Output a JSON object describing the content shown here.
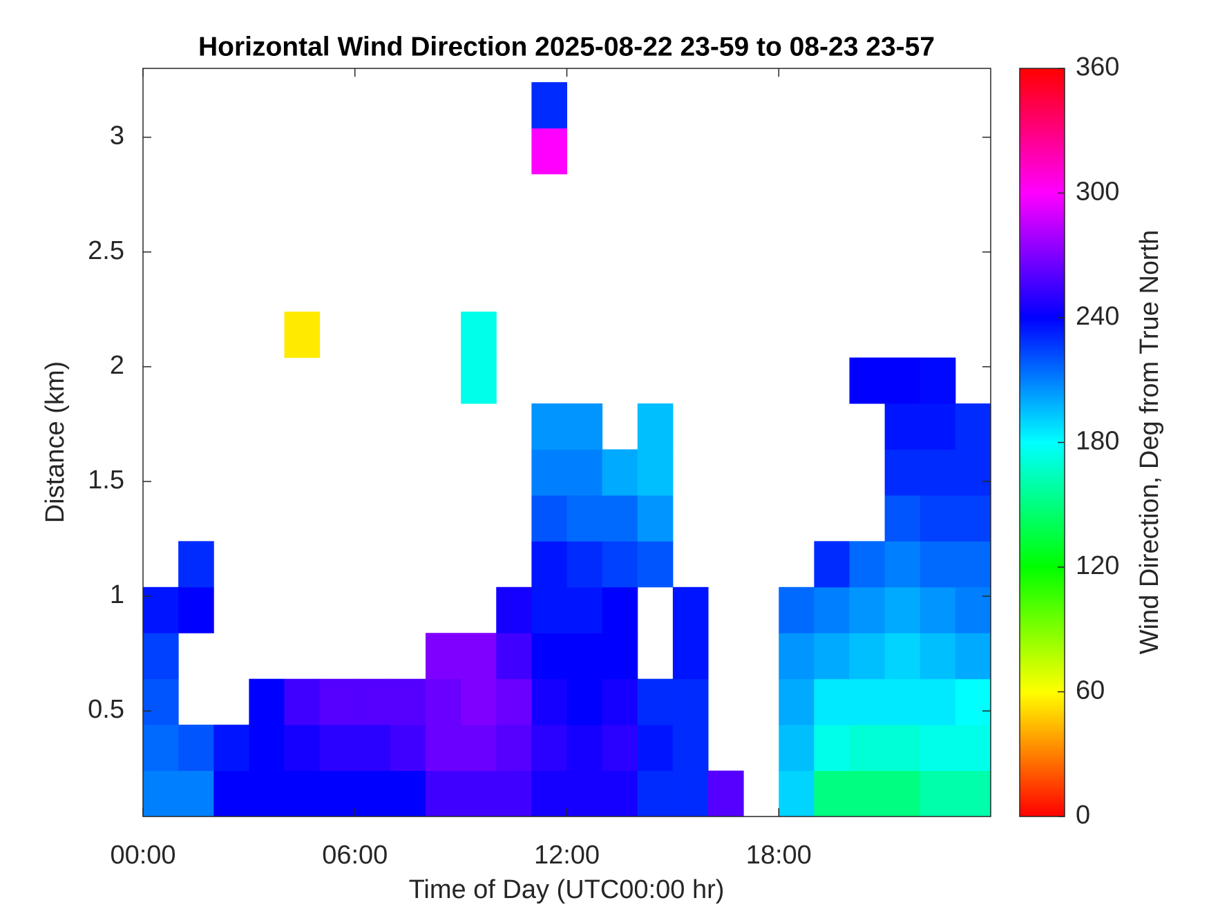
{
  "chart_data": {
    "type": "heatmap",
    "title": "Horizontal Wind Direction 2025-08-22 23-59 to 08-23 23-57",
    "xlabel": "Time of Day (UTC00:00 hr)",
    "ylabel": "Distance (km)",
    "xlim": [
      0,
      24
    ],
    "ylim": [
      0.04,
      3.3
    ],
    "xticks": [
      {
        "value": 0,
        "label": "00:00"
      },
      {
        "value": 6,
        "label": "06:00"
      },
      {
        "value": 12,
        "label": "12:00"
      },
      {
        "value": 18,
        "label": "18:00"
      }
    ],
    "yticks": [
      0.5,
      1,
      1.5,
      2,
      2.5,
      3
    ],
    "x_bins": [
      0,
      1,
      2,
      3,
      4,
      5,
      6,
      7,
      8,
      9,
      10,
      11,
      12,
      13,
      14,
      15,
      16,
      17,
      18,
      19,
      20,
      21,
      22,
      23,
      24
    ],
    "y_bins": [
      0.04,
      0.24,
      0.44,
      0.64,
      0.84,
      1.04,
      1.24,
      1.44,
      1.64,
      1.84,
      2.04,
      2.24,
      2.44,
      2.64,
      2.84,
      3.04,
      3.24
    ],
    "values": [
      [
        210,
        210,
        240,
        240,
        240,
        240,
        240,
        240,
        255,
        255,
        255,
        245,
        245,
        245,
        230,
        230,
        260,
        null,
        190,
        150,
        150,
        150,
        160,
        160
      ],
      [
        215,
        220,
        235,
        240,
        245,
        250,
        250,
        255,
        265,
        265,
        260,
        250,
        245,
        250,
        235,
        230,
        null,
        null,
        195,
        175,
        170,
        170,
        175,
        175
      ],
      [
        220,
        null,
        null,
        240,
        255,
        260,
        260,
        260,
        265,
        270,
        265,
        245,
        240,
        245,
        230,
        230,
        null,
        null,
        200,
        185,
        185,
        185,
        185,
        180
      ],
      [
        225,
        null,
        null,
        null,
        null,
        null,
        null,
        null,
        270,
        270,
        255,
        240,
        240,
        240,
        null,
        235,
        null,
        null,
        205,
        200,
        195,
        190,
        195,
        200
      ],
      [
        235,
        240,
        null,
        null,
        null,
        null,
        null,
        null,
        null,
        null,
        245,
        235,
        235,
        240,
        null,
        235,
        null,
        null,
        215,
        210,
        205,
        200,
        205,
        210
      ],
      [
        null,
        230,
        null,
        null,
        null,
        null,
        null,
        null,
        null,
        null,
        null,
        235,
        230,
        225,
        220,
        null,
        null,
        null,
        null,
        230,
        215,
        210,
        215,
        215
      ],
      [
        null,
        null,
        null,
        null,
        null,
        null,
        null,
        null,
        null,
        null,
        null,
        220,
        215,
        215,
        205,
        null,
        null,
        null,
        null,
        null,
        null,
        220,
        225,
        225
      ],
      [
        null,
        null,
        null,
        null,
        null,
        null,
        null,
        null,
        null,
        null,
        null,
        210,
        210,
        200,
        195,
        null,
        null,
        null,
        null,
        null,
        null,
        230,
        230,
        230
      ],
      [
        null,
        null,
        null,
        null,
        null,
        null,
        null,
        null,
        null,
        null,
        null,
        205,
        205,
        null,
        195,
        null,
        null,
        null,
        null,
        null,
        null,
        235,
        235,
        230
      ],
      [
        null,
        null,
        null,
        null,
        null,
        null,
        null,
        null,
        null,
        175,
        null,
        null,
        null,
        null,
        null,
        null,
        null,
        null,
        null,
        null,
        240,
        240,
        238,
        null
      ],
      [
        null,
        null,
        null,
        null,
        55,
        null,
        null,
        null,
        null,
        175,
        null,
        null,
        null,
        null,
        null,
        null,
        null,
        null,
        null,
        null,
        null,
        null,
        null,
        null
      ],
      [
        null,
        null,
        null,
        null,
        null,
        null,
        null,
        null,
        null,
        null,
        null,
        null,
        null,
        null,
        null,
        null,
        null,
        null,
        null,
        null,
        null,
        null,
        null,
        null
      ],
      [
        null,
        null,
        null,
        null,
        null,
        null,
        null,
        null,
        null,
        null,
        null,
        null,
        null,
        null,
        null,
        null,
        null,
        null,
        null,
        null,
        null,
        null,
        null,
        null
      ],
      [
        null,
        null,
        null,
        null,
        null,
        null,
        null,
        null,
        null,
        null,
        null,
        null,
        null,
        null,
        null,
        null,
        null,
        null,
        null,
        null,
        null,
        null,
        null,
        null
      ],
      [
        null,
        null,
        null,
        null,
        null,
        null,
        null,
        null,
        null,
        null,
        null,
        300,
        null,
        null,
        null,
        null,
        null,
        null,
        null,
        null,
        null,
        null,
        null,
        null
      ],
      [
        null,
        null,
        null,
        null,
        null,
        null,
        null,
        null,
        null,
        null,
        null,
        230,
        null,
        null,
        null,
        null,
        null,
        null,
        null,
        null,
        null,
        null,
        null,
        null
      ]
    ],
    "colormap": "hsv",
    "colorbar": {
      "label": "Wind Direction, Deg from True North",
      "lim": [
        0,
        360
      ],
      "ticks": [
        0,
        60,
        120,
        180,
        240,
        300,
        360
      ]
    }
  }
}
